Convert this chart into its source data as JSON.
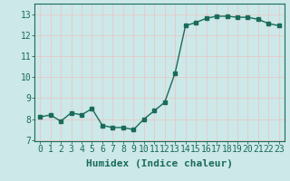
{
  "x": [
    0,
    1,
    2,
    3,
    4,
    5,
    6,
    7,
    8,
    9,
    10,
    11,
    12,
    13,
    14,
    15,
    16,
    17,
    18,
    19,
    20,
    21,
    22,
    23
  ],
  "y": [
    8.1,
    8.2,
    7.9,
    8.3,
    8.2,
    8.5,
    7.7,
    7.6,
    7.6,
    7.5,
    8.0,
    8.4,
    8.8,
    10.2,
    12.45,
    12.6,
    12.8,
    12.9,
    12.9,
    12.85,
    12.85,
    12.75,
    12.55,
    12.45
  ],
  "line_color": "#1a6b5a",
  "marker": "s",
  "marker_size": 2.5,
  "bg_color": "#cce8e8",
  "grid_color": "#e8c8c8",
  "xlabel": "Humidex (Indice chaleur)",
  "xlim": [
    -0.5,
    23.5
  ],
  "ylim": [
    6.95,
    13.5
  ],
  "yticks": [
    7,
    8,
    9,
    10,
    11,
    12,
    13
  ],
  "xticks": [
    0,
    1,
    2,
    3,
    4,
    5,
    6,
    7,
    8,
    9,
    10,
    11,
    12,
    13,
    14,
    15,
    16,
    17,
    18,
    19,
    20,
    21,
    22,
    23
  ],
  "tick_color": "#1a6b5a",
  "label_color": "#1a6b5a",
  "font_size": 7,
  "line_width": 1.0
}
